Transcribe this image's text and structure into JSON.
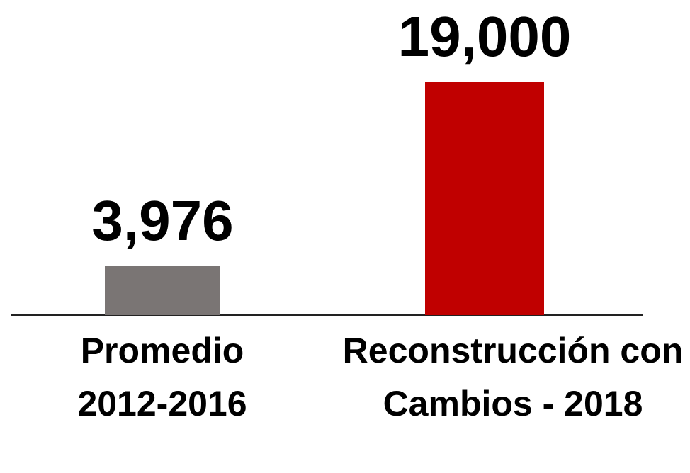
{
  "chart_data": {
    "type": "bar",
    "categories": [
      "Promedio 2012-2016",
      "Reconstrucción con Cambios - 2018"
    ],
    "values": [
      3976,
      19000
    ],
    "value_labels": [
      "3,976",
      "19,000"
    ],
    "colors": [
      "#7a7574",
      "#c00000"
    ],
    "ylim": [
      0,
      19000
    ]
  }
}
